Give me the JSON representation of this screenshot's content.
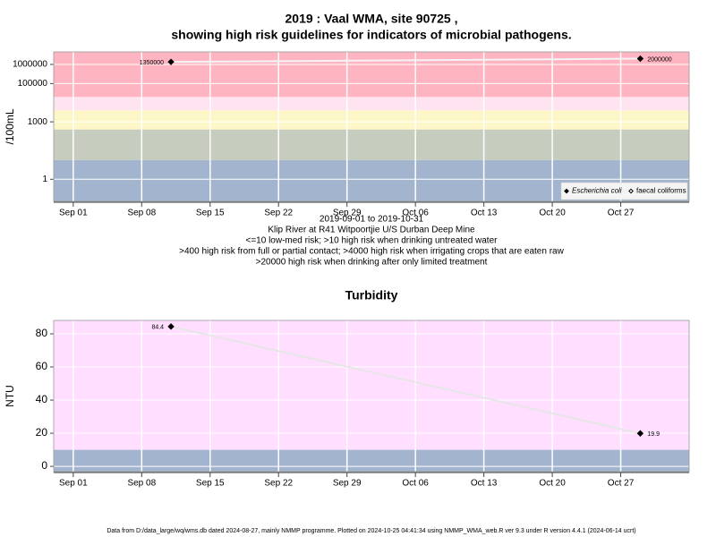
{
  "chart_data": [
    {
      "type": "line",
      "title": [
        "2019 : Vaal WMA, site 90725 ,",
        "showing high risk guidelines for indicators of microbial pathogens."
      ],
      "ylabel": "/100mL",
      "notes": [
        "2019-09-01 to 2019-10-31",
        "Klip River at R41 Witpoortjie U/S Durban Deep Mine",
        "<=10 low-med risk; >10 high risk when drinking untreated water",
        ">400 high risk from full or partial contact; >4000 high risk when irrigating crops that are eaten raw",
        ">20000 high risk when drinking after only limited treatment"
      ],
      "x": [
        "2019-09-11",
        "2019-10-29"
      ],
      "series": [
        {
          "name": "Escherichia coli",
          "color": "#000000",
          "line_color": "#f4f4f4",
          "marker": "filled",
          "values": [
            1350000,
            2000000
          ]
        },
        {
          "name": "faecal coliforms",
          "color": "#000000",
          "line_color": "#f4f4f4",
          "marker": "open",
          "values": [
            null,
            null
          ]
        }
      ],
      "xlim": [
        "2019-08-30",
        "2019-11-03"
      ],
      "xticks": [
        {
          "value": "2019-09-01",
          "label": "Sep 01"
        },
        {
          "value": "2019-09-08",
          "label": "Sep 08"
        },
        {
          "value": "2019-09-15",
          "label": "Sep 15"
        },
        {
          "value": "2019-09-22",
          "label": "Sep 22"
        },
        {
          "value": "2019-09-29",
          "label": "Sep 29"
        },
        {
          "value": "2019-10-06",
          "label": "Oct 06"
        },
        {
          "value": "2019-10-13",
          "label": "Oct 13"
        },
        {
          "value": "2019-10-20",
          "label": "Oct 20"
        },
        {
          "value": "2019-10-27",
          "label": "Oct 27"
        }
      ],
      "ylim": [
        0.07,
        4500000
      ],
      "log_y": true,
      "yticks": [
        1,
        1000,
        100000,
        1000000
      ],
      "band_breaks": [
        10,
        400,
        4000,
        20000
      ],
      "band_colors": [
        "#a3b5ce",
        "#c6cdbf",
        "#fdf7c7",
        "#fde4f0",
        "#ffb4c2"
      ],
      "grid": true,
      "legend": "lower right"
    },
    {
      "type": "line",
      "title": [
        "Turbidity"
      ],
      "ylabel": "NTU",
      "x": [
        "2019-09-11",
        "2019-10-29"
      ],
      "series": [
        {
          "name": "Turbidity",
          "color": "#000000",
          "line_color": "#e6e6e6",
          "marker": "filled",
          "values": [
            84.4,
            19.9
          ]
        }
      ],
      "xlim": [
        "2019-08-30",
        "2019-11-03"
      ],
      "xticks": [
        {
          "value": "2019-09-01",
          "label": "Sep 01"
        },
        {
          "value": "2019-09-08",
          "label": "Sep 08"
        },
        {
          "value": "2019-09-15",
          "label": "Sep 15"
        },
        {
          "value": "2019-09-22",
          "label": "Sep 22"
        },
        {
          "value": "2019-09-29",
          "label": "Sep 29"
        },
        {
          "value": "2019-10-06",
          "label": "Oct 06"
        },
        {
          "value": "2019-10-13",
          "label": "Oct 13"
        },
        {
          "value": "2019-10-20",
          "label": "Oct 20"
        },
        {
          "value": "2019-10-27",
          "label": "Oct 27"
        }
      ],
      "ylim": [
        -3.2,
        88.1
      ],
      "log_y": false,
      "yticks": [
        0,
        20,
        40,
        60,
        80
      ],
      "band_breaks": [
        10
      ],
      "band_colors": [
        "#a3b5ce",
        "#ffdeff"
      ],
      "grid": true
    }
  ],
  "footer": "Data from D:/data_large/wq/wms.db dated 2024-08-27, mainly NMMP programme. Plotted on 2024-10-25 04:41:34 using NMMP_WMA_web.R ver 9.3 under R version 4.4.1 (2024-06-14 ucrt)"
}
